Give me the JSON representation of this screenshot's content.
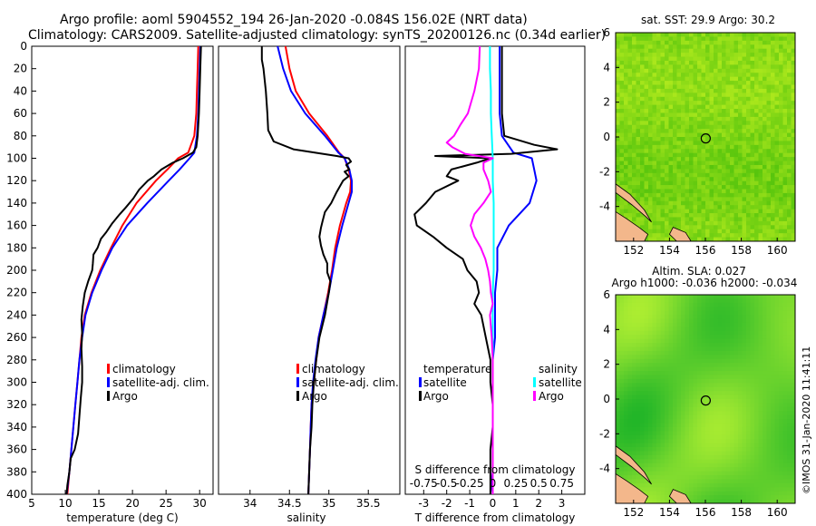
{
  "header": {
    "line1": "Argo profile: aoml 5904552_194 26-Jan-2020 -0.084S 156.02E (NRT data)",
    "line2": "Climatology: CARS2009. Satellite-adjusted climatology: synTS_20200126.nc (0.34d earlier)"
  },
  "colors": {
    "climatology": "#ff0000",
    "satellite": "#0000ff",
    "argo": "#000000",
    "argo_salinity": "#ff00ff",
    "satellite_salinity": "#00ffff"
  },
  "chart_data": [
    {
      "type": "line",
      "name": "temperature-profile",
      "xlabel": "temperature (deg C)",
      "ylabel": "",
      "xlim": [
        5,
        32
      ],
      "ylim": [
        400,
        0
      ],
      "xticks": [
        5,
        10,
        15,
        20,
        25,
        30
      ],
      "yticks": [
        0,
        20,
        40,
        60,
        80,
        100,
        120,
        140,
        160,
        180,
        200,
        220,
        240,
        260,
        280,
        300,
        320,
        340,
        360,
        380,
        400
      ],
      "legend": [
        "climatology",
        "satellite-adj. clim.",
        "Argo"
      ],
      "series": [
        {
          "name": "climatology",
          "color": "#ff0000",
          "depth": [
            0,
            20,
            40,
            60,
            80,
            95,
            100,
            110,
            120,
            140,
            160,
            180,
            200,
            220,
            240,
            260,
            280,
            300,
            320,
            340,
            360,
            380,
            400
          ],
          "values": [
            29.8,
            29.7,
            29.6,
            29.5,
            29.2,
            28.3,
            26.8,
            25.2,
            23.5,
            20.6,
            18.5,
            16.8,
            15.2,
            13.9,
            12.9,
            12.4,
            12.1,
            11.8,
            11.5,
            11.2,
            10.9,
            10.6,
            10.3
          ]
        },
        {
          "name": "satellite-adj. clim.",
          "color": "#0000ff",
          "depth": [
            0,
            20,
            40,
            60,
            80,
            95,
            100,
            110,
            120,
            140,
            160,
            180,
            200,
            220,
            240,
            260,
            280,
            300,
            320,
            340,
            360,
            380,
            400
          ],
          "values": [
            30.1,
            30.0,
            29.9,
            29.8,
            29.6,
            29.2,
            28.5,
            27.0,
            25.4,
            22.2,
            19.2,
            17.0,
            15.4,
            14.0,
            13.0,
            12.5,
            12.1,
            11.8,
            11.5,
            11.2,
            10.9,
            10.6,
            10.2
          ]
        },
        {
          "name": "Argo",
          "color": "#000000",
          "depth": [
            0,
            20,
            40,
            60,
            80,
            90,
            95,
            100,
            104,
            110,
            116,
            120,
            128,
            136,
            144,
            150,
            158,
            166,
            172,
            180,
            186,
            194,
            200,
            210,
            220,
            232,
            244,
            256,
            270,
            286,
            300,
            314,
            330,
            346,
            360,
            368,
            380,
            392,
            400
          ],
          "values": [
            30.2,
            30.1,
            30.0,
            29.9,
            29.7,
            29.5,
            29.0,
            27.5,
            26.0,
            24.3,
            23.2,
            22.3,
            21.0,
            20.1,
            19.0,
            18.1,
            17.0,
            16.1,
            15.3,
            14.8,
            14.2,
            14.1,
            14.0,
            13.4,
            12.9,
            12.6,
            12.4,
            12.5,
            12.4,
            12.5,
            12.5,
            12.3,
            12.1,
            11.9,
            11.4,
            10.8,
            10.6,
            10.3,
            10.2
          ]
        }
      ]
    },
    {
      "type": "line",
      "name": "salinity-profile",
      "xlabel": "salinity",
      "xlim": [
        33.6,
        35.9
      ],
      "ylim": [
        400,
        0
      ],
      "xticks": [
        34,
        34.5,
        35,
        35.5
      ],
      "legend": [
        "climatology",
        "satellite-adj. clim.",
        "Argo"
      ],
      "series": [
        {
          "name": "climatology",
          "color": "#ff0000",
          "depth": [
            0,
            20,
            40,
            60,
            80,
            95,
            100,
            110,
            120,
            130,
            140,
            160,
            180,
            200,
            220,
            240,
            260,
            280,
            300,
            320,
            340,
            360,
            380,
            400
          ],
          "values": [
            34.45,
            34.5,
            34.58,
            34.75,
            34.98,
            35.13,
            35.2,
            35.25,
            35.28,
            35.27,
            35.22,
            35.14,
            35.08,
            35.04,
            34.99,
            34.93,
            34.87,
            34.84,
            34.81,
            34.78,
            34.77,
            34.76,
            34.75,
            34.74
          ]
        },
        {
          "name": "satellite-adj. clim.",
          "color": "#0000ff",
          "depth": [
            0,
            20,
            40,
            60,
            80,
            95,
            100,
            110,
            120,
            130,
            140,
            160,
            180,
            200,
            220,
            240,
            260,
            280,
            300,
            320,
            340,
            360,
            380,
            400
          ],
          "values": [
            34.35,
            34.42,
            34.52,
            34.7,
            34.95,
            35.12,
            35.2,
            35.26,
            35.29,
            35.29,
            35.25,
            35.17,
            35.1,
            35.05,
            35.0,
            34.93,
            34.87,
            34.83,
            34.8,
            34.78,
            34.77,
            34.76,
            34.75,
            34.74
          ]
        },
        {
          "name": "Argo",
          "color": "#000000",
          "depth": [
            0,
            12,
            20,
            40,
            60,
            75,
            85,
            92,
            98,
            100,
            103,
            106,
            110,
            112,
            116,
            120,
            130,
            140,
            148,
            156,
            162,
            170,
            178,
            186,
            194,
            202,
            210,
            220,
            240,
            260,
            280,
            300,
            320,
            340,
            360,
            380,
            400
          ],
          "values": [
            34.15,
            34.15,
            34.17,
            34.2,
            34.22,
            34.23,
            34.3,
            34.55,
            35.1,
            35.25,
            35.28,
            35.22,
            35.26,
            35.2,
            35.25,
            35.18,
            35.1,
            35.03,
            34.95,
            34.92,
            34.9,
            34.88,
            34.9,
            34.93,
            34.98,
            34.98,
            35.02,
            35.0,
            34.95,
            34.88,
            34.84,
            34.81,
            34.79,
            34.78,
            34.76,
            34.75,
            34.74
          ]
        }
      ]
    },
    {
      "type": "line",
      "name": "difference-profile",
      "xlabel": "T difference from climatology",
      "top_label": "S difference from climatology",
      "xlim": [
        -3.8,
        4.0
      ],
      "ylim": [
        400,
        0
      ],
      "xticks": [
        -3,
        -2,
        -1,
        0,
        1,
        2,
        3
      ],
      "top_xticks": [
        "-0.75",
        "-0.5",
        "-0.25",
        "0",
        "0.25",
        "0.5",
        "0.75"
      ],
      "legend": [
        "temperature",
        "satellite",
        "Argo",
        "salinity",
        "satellite",
        "Argo"
      ],
      "series": [
        {
          "name": "temperature satellite",
          "color": "#0000ff",
          "depth": [
            0,
            20,
            40,
            60,
            80,
            95,
            100,
            110,
            120,
            140,
            160,
            180,
            200,
            220,
            240,
            260,
            280,
            300,
            320,
            340,
            360,
            380,
            400
          ],
          "values": [
            0.3,
            0.3,
            0.3,
            0.3,
            0.4,
            0.9,
            1.7,
            1.8,
            1.9,
            1.6,
            0.7,
            0.2,
            0.2,
            0.1,
            0.1,
            0.1,
            0.0,
            0.0,
            0.0,
            0.0,
            0.0,
            0.0,
            -0.1
          ]
        },
        {
          "name": "temperature Argo",
          "color": "#000000",
          "depth": [
            0,
            20,
            40,
            60,
            80,
            88,
            92,
            96,
            98,
            100,
            104,
            110,
            116,
            120,
            130,
            140,
            150,
            160,
            170,
            180,
            190,
            200,
            210,
            220,
            230,
            240,
            260,
            280,
            300,
            320,
            340,
            360,
            380,
            400
          ],
          "values": [
            0.4,
            0.4,
            0.4,
            0.4,
            0.5,
            1.8,
            2.8,
            0.8,
            -2.5,
            -0.1,
            -0.7,
            -1.8,
            -2.0,
            -1.5,
            -2.5,
            -2.9,
            -3.4,
            -3.3,
            -2.6,
            -2.0,
            -1.3,
            -1.1,
            -0.7,
            -0.6,
            -0.8,
            -0.5,
            -0.3,
            -0.1,
            -0.1,
            0.0,
            0.0,
            -0.1,
            -0.1,
            -0.1
          ]
        },
        {
          "name": "salinity satellite",
          "color": "#00ffff",
          "depth": [
            0,
            20,
            40,
            60,
            80,
            100,
            120,
            140,
            160,
            180,
            200,
            220,
            240,
            260,
            280,
            300,
            320,
            340,
            360,
            380,
            400
          ],
          "values": [
            -0.03,
            -0.03,
            -0.02,
            -0.02,
            -0.01,
            0.0,
            0.0,
            0.01,
            0.01,
            0.01,
            0.01,
            0.0,
            0.0,
            0.0,
            0.0,
            0.0,
            0.0,
            0.0,
            0.0,
            0.0,
            0.0
          ]
        },
        {
          "name": "salinity Argo",
          "color": "#ff00ff",
          "depth": [
            0,
            20,
            40,
            60,
            70,
            80,
            86,
            90,
            96,
            100,
            104,
            110,
            120,
            130,
            140,
            150,
            160,
            170,
            180,
            190,
            200,
            210,
            220,
            230,
            240,
            260,
            280,
            300,
            320,
            340,
            360,
            380,
            400
          ],
          "values": [
            -0.14,
            -0.15,
            -0.2,
            -0.27,
            -0.35,
            -0.42,
            -0.5,
            -0.44,
            -0.3,
            0.0,
            -0.1,
            -0.1,
            -0.05,
            -0.02,
            -0.1,
            -0.2,
            -0.24,
            -0.2,
            -0.13,
            -0.08,
            -0.05,
            -0.03,
            -0.02,
            0.0,
            -0.03,
            -0.01,
            0.0,
            0.0,
            0.0,
            0.0,
            0.0,
            0.0,
            0.0
          ]
        }
      ]
    },
    {
      "type": "heatmap",
      "name": "sst-map",
      "title": "sat. SST: 29.9 Argo: 30.2",
      "xlim": [
        151,
        161
      ],
      "ylim": [
        -6,
        6
      ],
      "xticks": [
        152,
        154,
        156,
        158,
        160
      ],
      "yticks": [
        -4,
        -2,
        0,
        2,
        4,
        6
      ],
      "marker": {
        "lon": 156.02,
        "lat": -0.084
      }
    },
    {
      "type": "heatmap",
      "name": "sla-map",
      "title": "Altim. SLA: 0.027",
      "subtitle": "Argo h1000: -0.036 h2000: -0.034",
      "xlim": [
        151,
        161
      ],
      "ylim": [
        -6,
        6
      ],
      "xticks": [
        152,
        154,
        156,
        158,
        160
      ],
      "yticks": [
        -4,
        -2,
        0,
        2,
        4,
        6
      ],
      "marker": {
        "lon": 156.02,
        "lat": -0.084
      }
    }
  ],
  "watermark": "©IMOS 31-Jan-2020 11:41:11"
}
